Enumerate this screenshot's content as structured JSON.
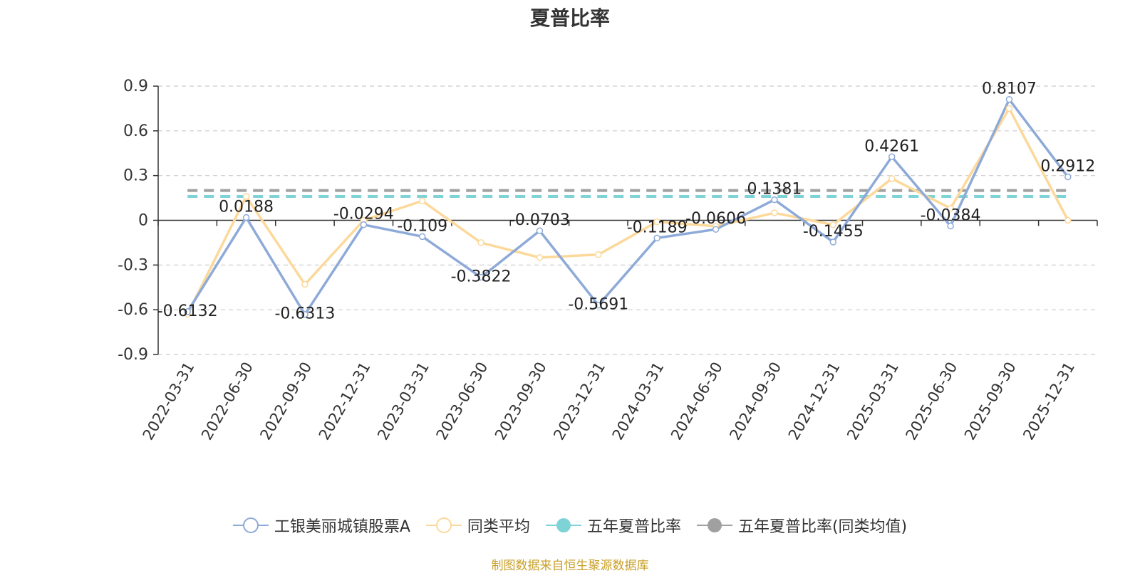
{
  "chart_data": {
    "type": "line",
    "title": "夏普比率",
    "categories": [
      "2022-03-31",
      "2022-06-30",
      "2022-09-30",
      "2022-12-31",
      "2023-03-31",
      "2023-06-30",
      "2023-09-30",
      "2023-12-31",
      "2024-03-31",
      "2024-06-30",
      "2024-09-30",
      "2024-12-31",
      "2025-03-31",
      "2025-06-30",
      "2025-09-30",
      "2025-12-31"
    ],
    "ylim": [
      -0.9,
      0.9
    ],
    "yticks": [
      "0.9",
      "0.6",
      "0.3",
      "0",
      "-0.3",
      "-0.6",
      "-0.9"
    ],
    "ytick_values": [
      0.9,
      0.6,
      0.3,
      0,
      -0.3,
      -0.6,
      -0.9
    ],
    "grid": true,
    "legend_position": "bottom",
    "series": [
      {
        "name": "工银美丽城镇股票A",
        "color": "#8eaad8",
        "values": [
          -0.6132,
          0.0188,
          -0.6313,
          -0.0294,
          -0.109,
          -0.3822,
          -0.0703,
          -0.5691,
          -0.1189,
          -0.0606,
          0.1381,
          -0.1455,
          0.4261,
          -0.0384,
          0.8107,
          0.2912
        ],
        "labels": [
          "-0.6132",
          "0.0188",
          "-0.6313",
          "-0.0294",
          "-0.109",
          "-0.3822",
          "-0.0703",
          "-0.5691",
          "-0.1189",
          "-0.0606",
          "0.1381",
          "-0.1455",
          "0.4261",
          "-0.0384",
          "0.8107",
          "0.2912"
        ]
      },
      {
        "name": "同类平均",
        "color": "#fcd99a",
        "values": [
          -0.63,
          0.16,
          -0.43,
          0.0,
          0.13,
          -0.15,
          -0.25,
          -0.23,
          -0.01,
          -0.04,
          0.05,
          -0.03,
          0.28,
          0.08,
          0.75,
          0.0
        ]
      },
      {
        "name": "五年夏普比率",
        "color": "#7ed3d6",
        "constant": 0.16
      },
      {
        "name": "五年夏普比率(同类均值)",
        "color": "#a0a0a0",
        "constant": 0.2
      }
    ]
  },
  "source_note": "制图数据来自恒生聚源数据库"
}
